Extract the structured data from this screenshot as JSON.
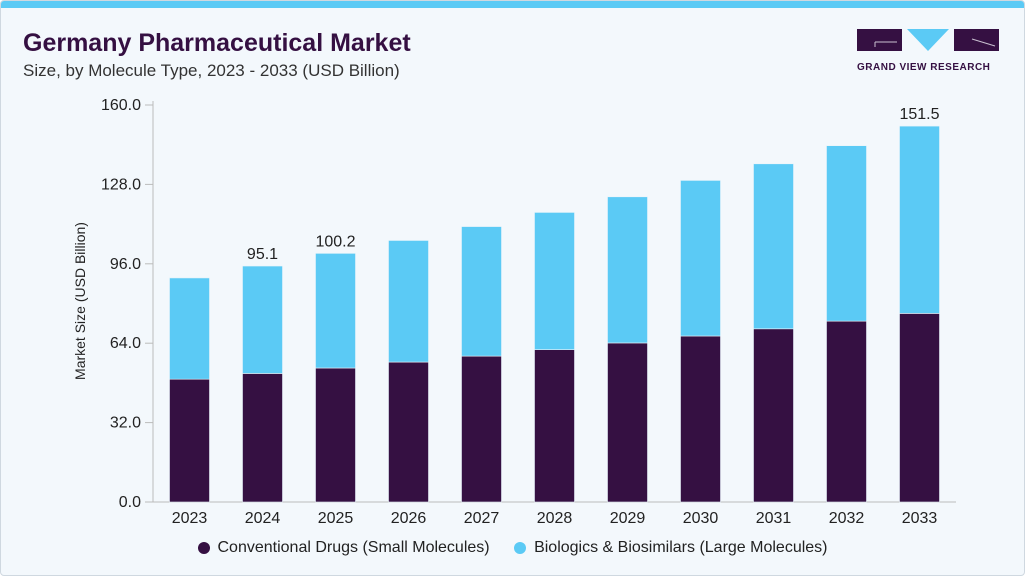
{
  "header": {
    "title": "Germany Pharmaceutical Market",
    "subtitle": "Size, by Molecule Type, 2023 - 2033 (USD Billion)"
  },
  "logo": {
    "text": "GRAND VIEW RESEARCH"
  },
  "colors": {
    "conventional": "#351042",
    "biologics": "#5bcaf5"
  },
  "chart_data": {
    "type": "bar",
    "stacked": true,
    "title": "Germany Pharmaceutical Market",
    "subtitle": "Size, by Molecule Type, 2023 - 2033 (USD Billion)",
    "xlabel": "",
    "ylabel": "Market Size (USD Billion)",
    "ylim": [
      0,
      160
    ],
    "yticks": [
      "0.0",
      "32.0",
      "64.0",
      "96.0",
      "128.0",
      "160.0"
    ],
    "categories": [
      "2023",
      "2024",
      "2025",
      "2026",
      "2027",
      "2028",
      "2029",
      "2030",
      "2031",
      "2032",
      "2033"
    ],
    "series": [
      {
        "name": "Conventional Drugs (Small Molecules)",
        "values": [
          49.5,
          51.8,
          54.0,
          56.4,
          58.8,
          61.4,
          64.1,
          66.9,
          69.8,
          72.9,
          76.0
        ]
      },
      {
        "name": "Biologics & Biosimilars (Large Molecules)",
        "values": [
          40.8,
          43.3,
          46.2,
          49.0,
          52.2,
          55.3,
          58.9,
          62.7,
          66.5,
          70.7,
          75.5
        ]
      }
    ],
    "data_labels": {
      "2024": "95.1",
      "2025": "100.2",
      "2033": "151.5"
    },
    "legend_position": "bottom",
    "grid": false
  }
}
